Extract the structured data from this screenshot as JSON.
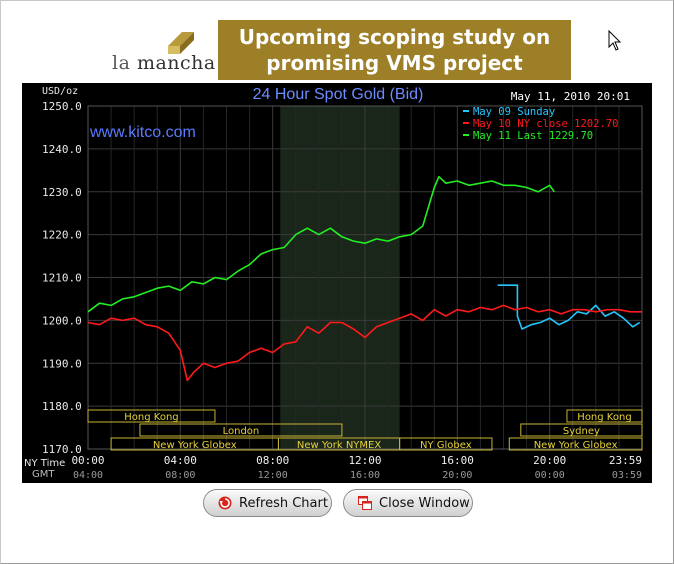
{
  "ad": {
    "brand_prefix": "la",
    "brand_main": "mancha",
    "line1": "Upcoming scoping study on",
    "line2": "promising VMS project",
    "accent": "#9c7f26"
  },
  "chart_data": {
    "type": "line",
    "title": "24 Hour Spot Gold (Bid)",
    "site": "www.kitco.com",
    "unit": "USD/oz",
    "timestamp": "May 11, 2010 20:01",
    "ylim": [
      1170,
      1250
    ],
    "yticks": [
      "1250.0",
      "1240.0",
      "1230.0",
      "1220.0",
      "1210.0",
      "1200.0",
      "1190.0",
      "1180.0",
      "1170.0"
    ],
    "ny_label": "NY Time",
    "gmt_label": "GMT",
    "x_ny": [
      "00:00",
      "04:00",
      "08:00",
      "12:00",
      "16:00",
      "20:00",
      "23:59"
    ],
    "x_gmt": [
      "04:00",
      "08:00",
      "12:00",
      "16:00",
      "20:00",
      "00:00",
      "03:59"
    ],
    "shaded_hours": [
      8.33,
      13.5
    ],
    "legend": [
      "May 09 Sunday",
      "May 10 NY close 1202.70",
      "May 11 Last 1229.70"
    ],
    "sessions": {
      "row1": [
        {
          "label": "Hong Kong",
          "start": 0,
          "end": 5.5
        },
        {
          "label": "Hong Kong",
          "start": 20.75,
          "end": 24
        }
      ],
      "row2": [
        {
          "label": "London",
          "start": 2.25,
          "end": 11.0
        },
        {
          "label": "Sydney",
          "start": 18.75,
          "end": 24
        }
      ],
      "row3": [
        {
          "label": "New York Globex",
          "start": 1.0,
          "end": 8.25
        },
        {
          "label": "New York NYMEX",
          "start": 8.25,
          "end": 13.5
        },
        {
          "label": "NY Globex",
          "start": 13.5,
          "end": 17.5
        },
        {
          "label": "New York Globex",
          "start": 18.25,
          "end": 24
        }
      ]
    },
    "series": [
      {
        "name": "May 09 Sunday",
        "color": "#22c8ff",
        "x": [
          17.75,
          18.6,
          18.6,
          18.8,
          19.2,
          19.6,
          20.0,
          20.4,
          20.8,
          21.2,
          21.6,
          22.0,
          22.4,
          22.8,
          23.2,
          23.6,
          23.9
        ],
        "y": [
          1208.2,
          1208.2,
          1201.0,
          1198.0,
          1199.0,
          1199.5,
          1200.5,
          1199.0,
          1200.0,
          1202.0,
          1201.5,
          1203.5,
          1201.0,
          1202.0,
          1200.5,
          1198.5,
          1199.5
        ]
      },
      {
        "name": "May 10 NY close 1202.70",
        "color": "#ff1a1a",
        "x": [
          0,
          0.5,
          1.0,
          1.5,
          2.0,
          2.5,
          3.0,
          3.5,
          4.0,
          4.3,
          4.6,
          5.0,
          5.5,
          6.0,
          6.5,
          7.0,
          7.5,
          8.0,
          8.5,
          9.0,
          9.5,
          10.0,
          10.5,
          11.0,
          11.5,
          12.0,
          12.5,
          13.0,
          13.5,
          14.0,
          14.5,
          15.0,
          15.5,
          16.0,
          16.5,
          17.0,
          17.5,
          18.0,
          18.5,
          19.0,
          19.5,
          20.0,
          20.5,
          21.0,
          21.5,
          22.0,
          22.5,
          23.0,
          23.5,
          23.99
        ],
        "y": [
          1199.5,
          1199.0,
          1200.5,
          1200.0,
          1200.5,
          1199.0,
          1198.5,
          1197.0,
          1193.0,
          1186.0,
          1188.0,
          1190.0,
          1189.0,
          1190.0,
          1190.5,
          1192.5,
          1193.5,
          1192.5,
          1194.5,
          1195.0,
          1198.5,
          1197.0,
          1199.5,
          1199.5,
          1198.0,
          1196.0,
          1198.5,
          1199.5,
          1200.5,
          1201.5,
          1200.0,
          1202.5,
          1201.0,
          1202.5,
          1202.0,
          1203.0,
          1202.5,
          1203.5,
          1202.5,
          1203.0,
          1202.0,
          1202.5,
          1201.5,
          1202.5,
          1202.5,
          1202.0,
          1202.5,
          1202.5,
          1202.0,
          1202.0
        ]
      },
      {
        "name": "May 11 Last 1229.70",
        "color": "#22ee22",
        "x": [
          0,
          0.5,
          1.0,
          1.5,
          2.0,
          2.5,
          3.0,
          3.5,
          4.0,
          4.5,
          5.0,
          5.5,
          6.0,
          6.5,
          7.0,
          7.5,
          8.0,
          8.5,
          9.0,
          9.5,
          10.0,
          10.5,
          11.0,
          11.5,
          12.0,
          12.5,
          13.0,
          13.5,
          14.0,
          14.5,
          15.0,
          15.2,
          15.5,
          16.0,
          16.5,
          17.0,
          17.5,
          18.0,
          18.5,
          19.0,
          19.5,
          20.0,
          20.2
        ],
        "y": [
          1202.0,
          1204.0,
          1203.5,
          1205.0,
          1205.5,
          1206.5,
          1207.5,
          1208.0,
          1207.0,
          1209.0,
          1208.5,
          1210.0,
          1209.5,
          1211.5,
          1213.0,
          1215.5,
          1216.5,
          1217.0,
          1220.0,
          1221.5,
          1220.0,
          1221.5,
          1219.5,
          1218.5,
          1218.0,
          1219.0,
          1218.5,
          1219.5,
          1220.0,
          1222.0,
          1231.0,
          1233.5,
          1232.0,
          1232.5,
          1231.5,
          1232.0,
          1232.5,
          1231.5,
          1231.5,
          1231.0,
          1230.0,
          1231.5,
          1230.0
        ]
      }
    ]
  },
  "buttons": {
    "refresh_label": "Refresh Chart",
    "close_label": "Close Window"
  }
}
